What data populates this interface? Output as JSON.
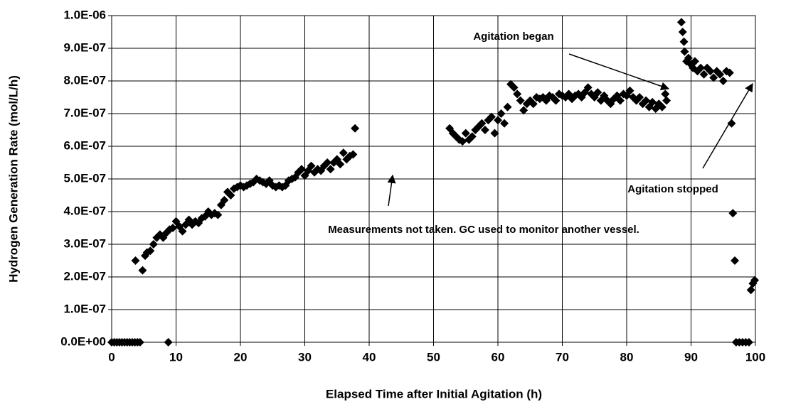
{
  "chart_data": {
    "type": "scatter",
    "xlabel": "Elapsed Time after Initial Agitation (h)",
    "ylabel": "Hydrogen Generation Rate (mol/L/h)",
    "color": "#000000",
    "grid": true,
    "xlim": [
      0,
      100
    ],
    "ylim": [
      0,
      1e-06
    ],
    "xticks": [
      0,
      10,
      20,
      30,
      40,
      50,
      60,
      70,
      80,
      90,
      100
    ],
    "yticks": [
      {
        "value": 0,
        "label": "0.0E+00"
      },
      {
        "value": 1e-07,
        "label": "1.0E-07"
      },
      {
        "value": 2e-07,
        "label": "2.0E-07"
      },
      {
        "value": 3e-07,
        "label": "3.0E-07"
      },
      {
        "value": 4e-07,
        "label": "4.0E-07"
      },
      {
        "value": 5e-07,
        "label": "5.0E-07"
      },
      {
        "value": 6e-07,
        "label": "6.0E-07"
      },
      {
        "value": 7e-07,
        "label": "7.0E-07"
      },
      {
        "value": 8e-07,
        "label": "8.0E-07"
      },
      {
        "value": 9e-07,
        "label": "9.0E-07"
      },
      {
        "value": 1e-06,
        "label": "1.0E-06"
      }
    ],
    "annotations": [
      {
        "text": "Agitation began"
      },
      {
        "text": "Agitation stopped"
      },
      {
        "text": "Measurements not taken. GC used to monitor another vessel."
      }
    ],
    "x": [
      0,
      0.4,
      0.8,
      1.2,
      1.6,
      2.0,
      2.4,
      2.8,
      3.2,
      3.6,
      4.0,
      4.4,
      8.8,
      3.7,
      4.8,
      5.2,
      5.5,
      6,
      6.5,
      7,
      7.5,
      8,
      8.5,
      9,
      9.5,
      10,
      10.5,
      11,
      11.5,
      12,
      12.5,
      13,
      13.5,
      14,
      14.5,
      15,
      15.5,
      16,
      16.5,
      17,
      17.5,
      18,
      18.5,
      19,
      19.5,
      20,
      20.5,
      21,
      21.5,
      22,
      22.5,
      23,
      23.5,
      24,
      24.5,
      25,
      25.5,
      26,
      26.5,
      27,
      27.5,
      28,
      28.5,
      29,
      29.5,
      30,
      30.5,
      31,
      31.5,
      32,
      32.5,
      33,
      33.5,
      34,
      34.5,
      35,
      35.5,
      36,
      36.5,
      37,
      37.5,
      37.8,
      52.5,
      53,
      53.5,
      54,
      54.5,
      55,
      55.5,
      56,
      56.5,
      57,
      57.5,
      58,
      58.5,
      59,
      59.5,
      60,
      60.5,
      61,
      61.5,
      62,
      62.5,
      63,
      63.5,
      64,
      64.5,
      65,
      65.5,
      66,
      66.5,
      67,
      67.5,
      68,
      68.5,
      69,
      69.5,
      70,
      70.5,
      71,
      71.5,
      72,
      72.5,
      73,
      73.5,
      74,
      74.5,
      75,
      75.5,
      76,
      76.5,
      77,
      77.5,
      78,
      78.5,
      79,
      79.5,
      80,
      80.5,
      81,
      81.5,
      82,
      82.5,
      83,
      83.5,
      84,
      84.5,
      85,
      85.5,
      86,
      86.2,
      88.5,
      88.7,
      88.9,
      89,
      89.3,
      89.6,
      90,
      90.3,
      90.6,
      91,
      91.5,
      92,
      92.5,
      93,
      93.5,
      94,
      94.5,
      95,
      95.5,
      96,
      96.3,
      96.5,
      96.8,
      97,
      97.5,
      98,
      98.5,
      99,
      99.3,
      99.6,
      99.9
    ],
    "values": [
      0,
      0,
      0,
      0,
      0,
      0,
      0,
      0,
      0,
      0,
      0,
      0,
      0,
      2.5e-07,
      2.2e-07,
      2.65e-07,
      2.75e-07,
      2.8e-07,
      3e-07,
      3.2e-07,
      3.3e-07,
      3.2e-07,
      3.35e-07,
      3.45e-07,
      3.5e-07,
      3.7e-07,
      3.55e-07,
      3.4e-07,
      3.6e-07,
      3.75e-07,
      3.6e-07,
      3.7e-07,
      3.65e-07,
      3.8e-07,
      3.85e-07,
      4e-07,
      3.9e-07,
      3.95e-07,
      3.9e-07,
      4.2e-07,
      4.35e-07,
      4.6e-07,
      4.5e-07,
      4.7e-07,
      4.75e-07,
      4.8e-07,
      4.75e-07,
      4.8e-07,
      4.85e-07,
      4.9e-07,
      5e-07,
      4.95e-07,
      4.9e-07,
      4.85e-07,
      4.95e-07,
      4.8e-07,
      4.75e-07,
      4.8e-07,
      4.75e-07,
      4.8e-07,
      4.95e-07,
      5e-07,
      5.05e-07,
      5.2e-07,
      5.3e-07,
      5.1e-07,
      5.25e-07,
      5.4e-07,
      5.2e-07,
      5.3e-07,
      5.25e-07,
      5.4e-07,
      5.5e-07,
      5.3e-07,
      5.5e-07,
      5.6e-07,
      5.45e-07,
      5.8e-07,
      5.6e-07,
      5.7e-07,
      5.75e-07,
      6.55e-07,
      6.55e-07,
      6.4e-07,
      6.3e-07,
      6.2e-07,
      6.15e-07,
      6.4e-07,
      6.2e-07,
      6.3e-07,
      6.5e-07,
      6.6e-07,
      6.7e-07,
      6.5e-07,
      6.8e-07,
      6.9e-07,
      6.4e-07,
      6.8e-07,
      7e-07,
      6.7e-07,
      7.2e-07,
      7.9e-07,
      7.8e-07,
      7.6e-07,
      7.4e-07,
      7.1e-07,
      7.3e-07,
      7.4e-07,
      7.3e-07,
      7.5e-07,
      7.45e-07,
      7.5e-07,
      7.4e-07,
      7.55e-07,
      7.5e-07,
      7.4e-07,
      7.6e-07,
      7.55e-07,
      7.5e-07,
      7.6e-07,
      7.45e-07,
      7.55e-07,
      7.6e-07,
      7.5e-07,
      7.65e-07,
      7.8e-07,
      7.6e-07,
      7.5e-07,
      7.65e-07,
      7.4e-07,
      7.55e-07,
      7.4e-07,
      7.3e-07,
      7.45e-07,
      7.55e-07,
      7.4e-07,
      7.6e-07,
      7.55e-07,
      7.7e-07,
      7.5e-07,
      7.4e-07,
      7.5e-07,
      7.3e-07,
      7.4e-07,
      7.2e-07,
      7.35e-07,
      7.15e-07,
      7.3e-07,
      7.2e-07,
      7.6e-07,
      7.4e-07,
      9.8e-07,
      9.5e-07,
      9.2e-07,
      8.9e-07,
      8.6e-07,
      8.7e-07,
      8.5e-07,
      8.4e-07,
      8.6e-07,
      8.3e-07,
      8.4e-07,
      8.2e-07,
      8.4e-07,
      8.3e-07,
      8.1e-07,
      8.3e-07,
      8.2e-07,
      8e-07,
      8.3e-07,
      8.25e-07,
      6.7e-07,
      3.95e-07,
      2.5e-07,
      0,
      0,
      0,
      0,
      0,
      1.6e-07,
      1.8e-07,
      1.9e-07
    ]
  }
}
